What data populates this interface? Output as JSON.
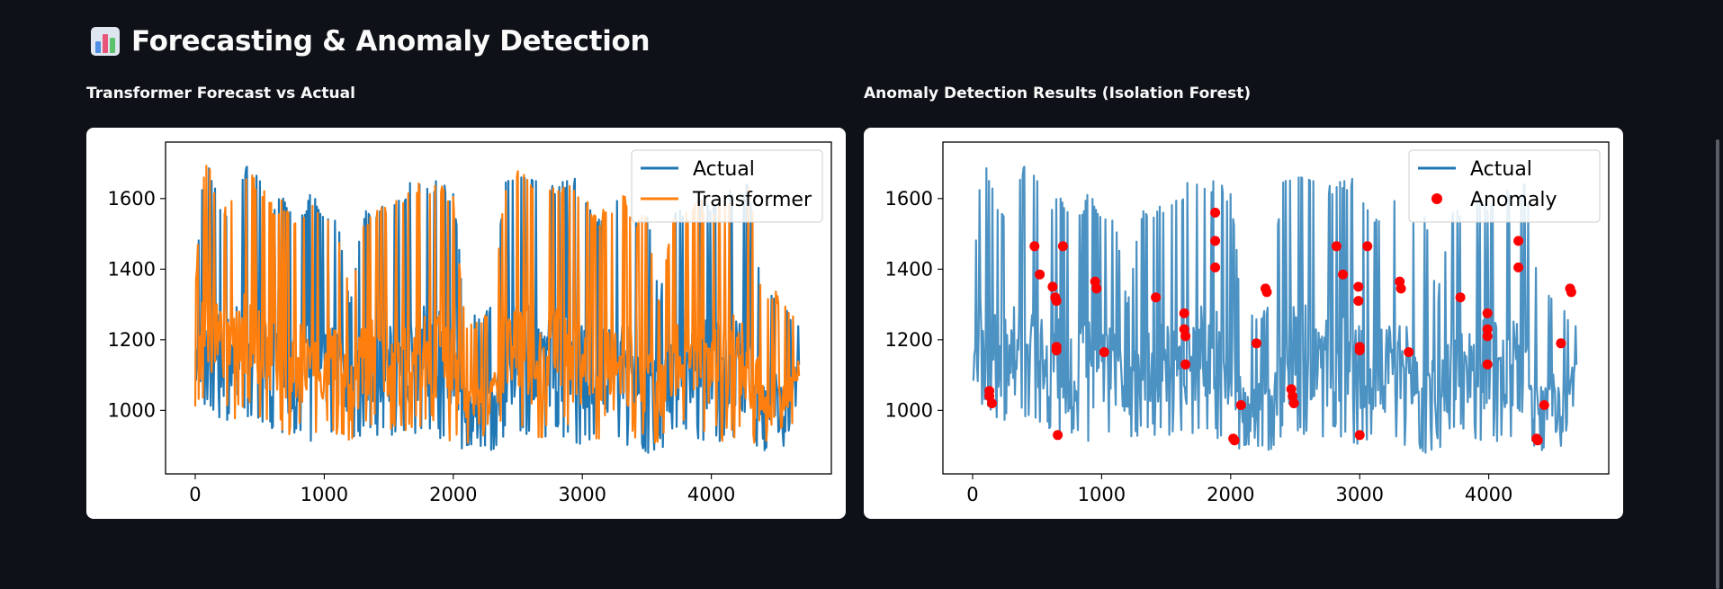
{
  "header": {
    "title": "Forecasting & Anomaly Detection",
    "icon": "bar-chart-icon"
  },
  "colors": {
    "background": "#0e1117",
    "actual": "#1f77b4",
    "transformer": "#ff7f0e",
    "anomaly": "#ff0000"
  },
  "chart_data": [
    {
      "type": "line",
      "title": "Transformer Forecast vs Actual",
      "xlabel": "",
      "ylabel": "",
      "xlim": [
        -230,
        4930
      ],
      "ylim": [
        820,
        1760
      ],
      "xticks": [
        0,
        1000,
        2000,
        3000,
        4000
      ],
      "yticks": [
        1000,
        1200,
        1400,
        1600
      ],
      "grid": false,
      "legend_position": "top-right",
      "series": [
        {
          "name": "Actual",
          "color": "#1f77b4",
          "x_range": [
            0,
            4680
          ],
          "envelope": [
            [
              0,
              990,
              1350
            ],
            [
              60,
              990,
              1700
            ],
            [
              120,
              1010,
              1690
            ],
            [
              200,
              970,
              1560
            ],
            [
              300,
              950,
              1620
            ],
            [
              400,
              980,
              1710
            ],
            [
              500,
              950,
              1660
            ],
            [
              600,
              940,
              1600
            ],
            [
              700,
              900,
              1610
            ],
            [
              800,
              920,
              1560
            ],
            [
              900,
              910,
              1620
            ],
            [
              1000,
              930,
              1580
            ],
            [
              1100,
              910,
              1550
            ],
            [
              1200,
              880,
              1330
            ],
            [
              1300,
              940,
              1560
            ],
            [
              1400,
              930,
              1580
            ],
            [
              1500,
              920,
              1600
            ],
            [
              1600,
              910,
              1620
            ],
            [
              1700,
              930,
              1660
            ],
            [
              1800,
              940,
              1650
            ],
            [
              1900,
              920,
              1650
            ],
            [
              2000,
              880,
              1620
            ],
            [
              2100,
              870,
              1270
            ],
            [
              2200,
              900,
              1270
            ],
            [
              2300,
              880,
              1300
            ],
            [
              2400,
              930,
              1650
            ],
            [
              2500,
              920,
              1700
            ],
            [
              2600,
              910,
              1680
            ],
            [
              2700,
              900,
              1620
            ],
            [
              2800,
              930,
              1650
            ],
            [
              2900,
              920,
              1660
            ],
            [
              3000,
              890,
              1650
            ],
            [
              3100,
              900,
              1560
            ],
            [
              3200,
              880,
              1590
            ],
            [
              3300,
              900,
              1640
            ],
            [
              3400,
              890,
              1560
            ],
            [
              3500,
              870,
              1580
            ],
            [
              3600,
              880,
              1320
            ],
            [
              3700,
              920,
              1560
            ],
            [
              3800,
              930,
              1580
            ],
            [
              3900,
              920,
              1620
            ],
            [
              4000,
              910,
              1600
            ],
            [
              4100,
              890,
              1620
            ],
            [
              4200,
              900,
              1660
            ],
            [
              4300,
              890,
              1640
            ],
            [
              4400,
              880,
              1330
            ],
            [
              4500,
              870,
              1350
            ],
            [
              4600,
              860,
              1300
            ],
            [
              4680,
              1060,
              1250
            ]
          ]
        },
        {
          "name": "Transformer",
          "color": "#ff7f0e",
          "x_range": [
            0,
            4680
          ],
          "envelope": [
            [
              0,
              1010,
              1360
            ],
            [
              60,
              1010,
              1700
            ],
            [
              120,
              1030,
              1690
            ],
            [
              200,
              990,
              1560
            ],
            [
              300,
              970,
              1610
            ],
            [
              400,
              1000,
              1690
            ],
            [
              500,
              970,
              1650
            ],
            [
              600,
              960,
              1590
            ],
            [
              700,
              920,
              1600
            ],
            [
              800,
              940,
              1550
            ],
            [
              900,
              930,
              1600
            ],
            [
              1000,
              950,
              1570
            ],
            [
              1100,
              930,
              1540
            ],
            [
              1200,
              900,
              1330
            ],
            [
              1300,
              960,
              1550
            ],
            [
              1400,
              950,
              1570
            ],
            [
              1500,
              940,
              1590
            ],
            [
              1600,
              930,
              1610
            ],
            [
              1700,
              950,
              1650
            ],
            [
              1800,
              960,
              1640
            ],
            [
              1900,
              940,
              1640
            ],
            [
              2000,
              900,
              1610
            ],
            [
              2100,
              890,
              1260
            ],
            [
              2200,
              920,
              1260
            ],
            [
              2300,
              900,
              1290
            ],
            [
              2400,
              950,
              1640
            ],
            [
              2500,
              940,
              1690
            ],
            [
              2600,
              930,
              1670
            ],
            [
              2700,
              920,
              1610
            ],
            [
              2800,
              950,
              1640
            ],
            [
              2900,
              940,
              1650
            ],
            [
              3000,
              910,
              1640
            ],
            [
              3100,
              920,
              1550
            ],
            [
              3200,
              900,
              1580
            ],
            [
              3300,
              920,
              1630
            ],
            [
              3400,
              910,
              1550
            ],
            [
              3500,
              890,
              1570
            ],
            [
              3600,
              900,
              1310
            ],
            [
              3700,
              940,
              1550
            ],
            [
              3800,
              950,
              1570
            ],
            [
              3900,
              940,
              1610
            ],
            [
              4000,
              930,
              1590
            ],
            [
              4100,
              910,
              1610
            ],
            [
              4200,
              920,
              1650
            ],
            [
              4300,
              910,
              1630
            ],
            [
              4400,
              900,
              1320
            ],
            [
              4500,
              890,
              1340
            ],
            [
              4600,
              880,
              1290
            ],
            [
              4680,
              1070,
              1240
            ]
          ]
        }
      ]
    },
    {
      "type": "line",
      "title": "Anomaly Detection Results (Isolation Forest)",
      "xlabel": "",
      "ylabel": "",
      "xlim": [
        -230,
        4930
      ],
      "ylim": [
        820,
        1760
      ],
      "xticks": [
        0,
        1000,
        2000,
        3000,
        4000
      ],
      "yticks": [
        1000,
        1200,
        1400,
        1600
      ],
      "grid": false,
      "legend_position": "top-right",
      "series": [
        {
          "name": "Actual",
          "color": "#1f77b4",
          "x_range": [
            0,
            4680
          ],
          "envelope": [
            [
              0,
              990,
              1350
            ],
            [
              60,
              990,
              1700
            ],
            [
              120,
              1010,
              1690
            ],
            [
              200,
              970,
              1560
            ],
            [
              300,
              950,
              1620
            ],
            [
              400,
              980,
              1710
            ],
            [
              500,
              950,
              1660
            ],
            [
              600,
              940,
              1600
            ],
            [
              700,
              900,
              1610
            ],
            [
              800,
              920,
              1560
            ],
            [
              900,
              910,
              1620
            ],
            [
              1000,
              930,
              1580
            ],
            [
              1100,
              910,
              1550
            ],
            [
              1200,
              880,
              1330
            ],
            [
              1300,
              940,
              1560
            ],
            [
              1400,
              930,
              1580
            ],
            [
              1500,
              920,
              1600
            ],
            [
              1600,
              910,
              1620
            ],
            [
              1700,
              930,
              1660
            ],
            [
              1800,
              940,
              1650
            ],
            [
              1900,
              920,
              1650
            ],
            [
              2000,
              880,
              1620
            ],
            [
              2100,
              870,
              1270
            ],
            [
              2200,
              900,
              1270
            ],
            [
              2300,
              880,
              1300
            ],
            [
              2400,
              930,
              1650
            ],
            [
              2500,
              920,
              1700
            ],
            [
              2600,
              910,
              1680
            ],
            [
              2700,
              900,
              1620
            ],
            [
              2800,
              930,
              1650
            ],
            [
              2900,
              920,
              1660
            ],
            [
              3000,
              890,
              1650
            ],
            [
              3100,
              900,
              1560
            ],
            [
              3200,
              880,
              1590
            ],
            [
              3300,
              900,
              1640
            ],
            [
              3400,
              890,
              1560
            ],
            [
              3500,
              870,
              1580
            ],
            [
              3600,
              880,
              1320
            ],
            [
              3700,
              920,
              1560
            ],
            [
              3800,
              930,
              1580
            ],
            [
              3900,
              920,
              1620
            ],
            [
              4000,
              910,
              1600
            ],
            [
              4100,
              890,
              1620
            ],
            [
              4200,
              900,
              1660
            ],
            [
              4300,
              890,
              1640
            ],
            [
              4400,
              880,
              1330
            ],
            [
              4500,
              870,
              1350
            ],
            [
              4600,
              860,
              1300
            ],
            [
              4680,
              1060,
              1250
            ]
          ]
        },
        {
          "name": "Anomaly",
          "type": "scatter",
          "color": "#ff0000",
          "points": [
            [
              130,
              1055
            ],
            [
              130,
              1040
            ],
            [
              150,
              1020
            ],
            [
              480,
              1465
            ],
            [
              520,
              1385
            ],
            [
              620,
              1350
            ],
            [
              640,
              1320
            ],
            [
              650,
              1310
            ],
            [
              650,
              1180
            ],
            [
              650,
              1170
            ],
            [
              660,
              930
            ],
            [
              700,
              1465
            ],
            [
              950,
              1365
            ],
            [
              960,
              1345
            ],
            [
              1020,
              1165
            ],
            [
              1420,
              1320
            ],
            [
              1640,
              1275
            ],
            [
              1640,
              1230
            ],
            [
              1650,
              1210
            ],
            [
              1650,
              1130
            ],
            [
              1880,
              1560
            ],
            [
              1880,
              1480
            ],
            [
              1880,
              1405
            ],
            [
              2020,
              920
            ],
            [
              2030,
              915
            ],
            [
              2080,
              1015
            ],
            [
              2200,
              1190
            ],
            [
              2270,
              1345
            ],
            [
              2280,
              1335
            ],
            [
              2470,
              1060
            ],
            [
              2480,
              1040
            ],
            [
              2490,
              1020
            ],
            [
              2820,
              1465
            ],
            [
              2870,
              1385
            ],
            [
              2990,
              1350
            ],
            [
              2990,
              1310
            ],
            [
              3000,
              1180
            ],
            [
              3000,
              1170
            ],
            [
              3000,
              930
            ],
            [
              3060,
              1465
            ],
            [
              3310,
              1365
            ],
            [
              3320,
              1345
            ],
            [
              3380,
              1165
            ],
            [
              3780,
              1320
            ],
            [
              3990,
              1275
            ],
            [
              3990,
              1230
            ],
            [
              3990,
              1210
            ],
            [
              3990,
              1130
            ],
            [
              4230,
              1480
            ],
            [
              4230,
              1405
            ],
            [
              4370,
              920
            ],
            [
              4380,
              915
            ],
            [
              4430,
              1015
            ],
            [
              4560,
              1190
            ],
            [
              4630,
              1345
            ],
            [
              4640,
              1335
            ]
          ]
        }
      ]
    }
  ]
}
